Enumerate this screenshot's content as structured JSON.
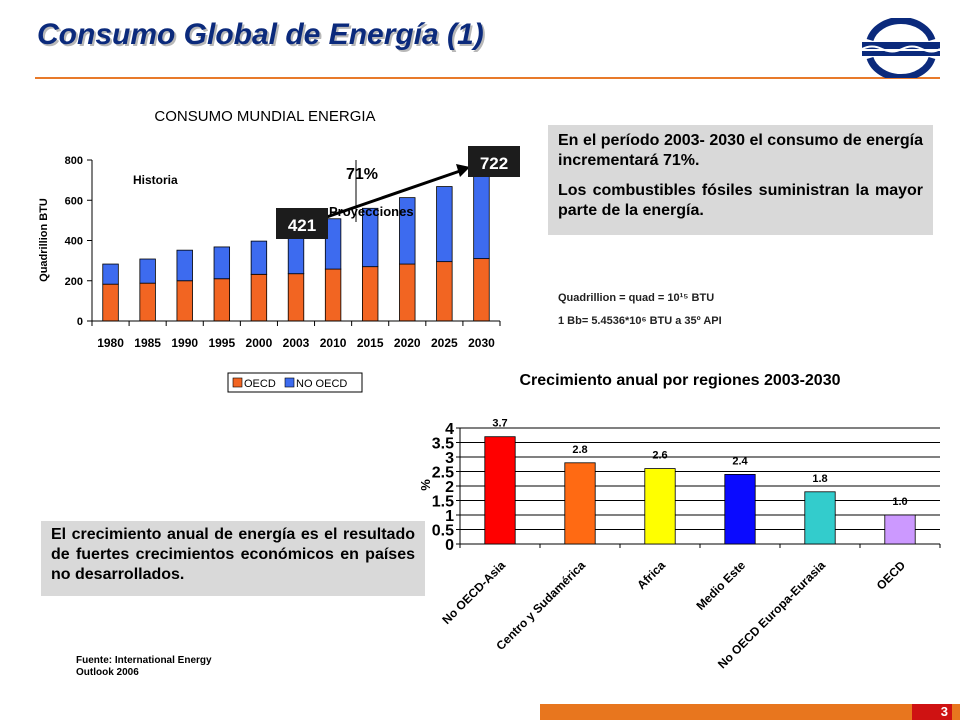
{
  "slide": {
    "title": "Consumo Global de Energía (1)",
    "page_number": "3",
    "box1_p1": "En el período 2003- 2030 el consumo de energía incrementará 71%.",
    "box1_p2": "Los combustibles fósiles suministran la mayor parte de la energía.",
    "note1": "Quadrillion = quad = 10¹⁵ BTU",
    "note2": "1 Bb= 5.4536*10⁶ BTU  a 35º API",
    "box2": "El crecimiento anual de energía es el resultado de fuertes crecimientos económicos en países no desarrollados.",
    "source_line1": "Fuente: International Energy",
    "source_line2": "Outlook 2006"
  },
  "colors": {
    "title": "#0b2a7c",
    "rule": "#e87a2a",
    "oecd": "#f26522",
    "non_oecd": "#3d6bef",
    "callout": "#1c1c1c",
    "box": "#d9d9d9"
  },
  "chart_data": [
    {
      "type": "bar",
      "stacked": true,
      "title": "CONSUMO MUNDIAL ENERGIA",
      "xlabel": "",
      "ylabel": "Quadrillion BTU",
      "ylim": [
        0,
        800
      ],
      "yticks": [
        0,
        200,
        400,
        600,
        800
      ],
      "categories": [
        "1980",
        "1985",
        "1990",
        "1995",
        "2000",
        "2003",
        "2010",
        "2015",
        "2020",
        "2025",
        "2030"
      ],
      "series": [
        {
          "name": "OECD",
          "color": "#f26522",
          "values": [
            183,
            188,
            200,
            210,
            232,
            235,
            258,
            270,
            283,
            295,
            310
          ]
        },
        {
          "name": "NO OECD",
          "color": "#3d6bef",
          "values": [
            100,
            120,
            152,
            158,
            165,
            186,
            250,
            290,
            330,
            373,
            412
          ]
        }
      ],
      "annotations": {
        "historia": "Historia",
        "proyecciones": "Proyecciones",
        "growth": "71%",
        "start_value": "421",
        "end_value": "722"
      },
      "legend_position": "bottom",
      "grid": false
    },
    {
      "type": "bar",
      "title": "Crecimiento anual por regiones 2003-2030",
      "xlabel": "",
      "ylabel": "%",
      "ylim": [
        0,
        4
      ],
      "yticks": [
        "0",
        "0.5",
        "1",
        "1.5",
        "2",
        "2.5",
        "3",
        "3.5",
        "4"
      ],
      "categories": [
        "No OECD-Asia",
        "Centro y Sudamérica",
        "Africa",
        "Medio Este",
        "No OECD Europa-Eurasia",
        "OECD"
      ],
      "values": [
        3.7,
        2.8,
        2.6,
        2.4,
        1.8,
        1.0
      ],
      "value_labels": [
        "3.7",
        "2.8",
        "2.6",
        "2.4",
        "1.8",
        "1.0"
      ],
      "colors": [
        "#ff0000",
        "#ff6a13",
        "#ffff00",
        "#0a0aff",
        "#33cccc",
        "#cc99ff"
      ],
      "grid": true
    }
  ]
}
